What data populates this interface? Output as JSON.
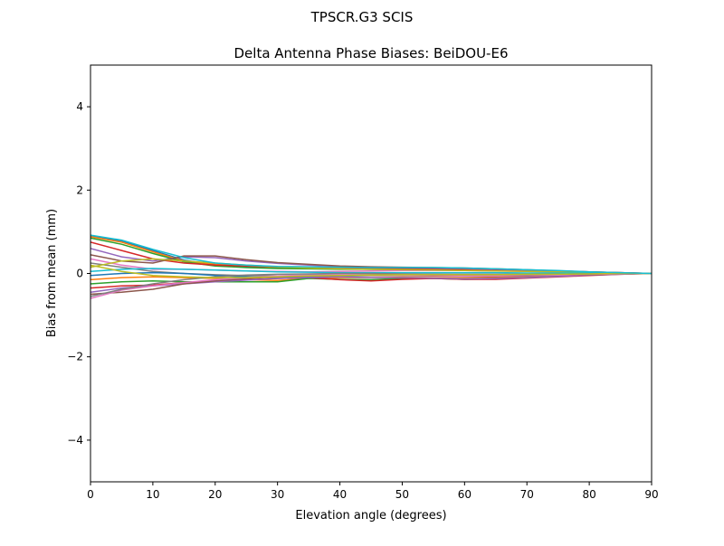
{
  "suptitle": "TPSCR.G3         SCIS",
  "chart_data": {
    "type": "line",
    "title": "Delta Antenna Phase Biases: BeiDOU-E6",
    "xlabel": "Elevation angle (degrees)",
    "ylabel": "Bias from mean (mm)",
    "xlim": [
      0,
      90
    ],
    "ylim": [
      -5,
      5
    ],
    "xticks": [
      0,
      10,
      20,
      30,
      40,
      50,
      60,
      70,
      80,
      90
    ],
    "yticks": [
      -4,
      -2,
      0,
      2,
      4
    ],
    "ytick_labels": [
      "−4",
      "−2",
      "0",
      "2",
      "4"
    ],
    "grid": false,
    "legend": "none",
    "colors": [
      "#1f77b4",
      "#ff7f0e",
      "#2ca02c",
      "#d62728",
      "#9467bd",
      "#8c564b",
      "#e377c2",
      "#7f7f7f",
      "#bcbd22",
      "#17becf"
    ],
    "x": [
      0,
      5,
      10,
      15,
      20,
      25,
      30,
      35,
      40,
      45,
      50,
      55,
      60,
      65,
      70,
      75,
      80,
      85,
      90
    ],
    "series": [
      {
        "values": [
          0.9,
          0.78,
          0.55,
          0.32,
          0.2,
          0.16,
          0.13,
          0.12,
          0.11,
          0.1,
          0.1,
          0.1,
          0.09,
          0.08,
          0.07,
          0.05,
          0.03,
          0.01,
          0
        ]
      },
      {
        "values": [
          0.88,
          0.75,
          0.52,
          0.3,
          0.22,
          0.18,
          0.15,
          0.14,
          0.13,
          0.12,
          0.12,
          0.12,
          0.11,
          0.1,
          0.08,
          0.06,
          0.04,
          0.02,
          0
        ]
      },
      {
        "values": [
          0.85,
          0.7,
          0.48,
          0.28,
          0.18,
          0.14,
          0.12,
          0.11,
          0.1,
          0.1,
          0.09,
          0.09,
          0.08,
          0.07,
          0.06,
          0.05,
          0.03,
          0.01,
          0
        ]
      },
      {
        "values": [
          0.75,
          0.55,
          0.35,
          0.25,
          0.2,
          0.18,
          0.16,
          0.15,
          0.14,
          0.13,
          0.12,
          0.11,
          0.1,
          0.09,
          0.07,
          0.05,
          0.03,
          0.01,
          0
        ]
      },
      {
        "values": [
          0.6,
          0.4,
          0.3,
          0.4,
          0.38,
          0.3,
          0.24,
          0.2,
          0.17,
          0.15,
          0.14,
          0.13,
          0.12,
          0.1,
          0.08,
          0.06,
          0.04,
          0.02,
          0
        ]
      },
      {
        "values": [
          0.45,
          0.3,
          0.25,
          0.42,
          0.42,
          0.33,
          0.26,
          0.22,
          0.18,
          0.16,
          0.15,
          0.14,
          0.13,
          0.11,
          0.09,
          0.06,
          0.04,
          0.02,
          0
        ]
      },
      {
        "values": [
          0.35,
          0.2,
          0.1,
          0.1,
          0.08,
          0.06,
          0.05,
          0.04,
          0.05,
          0.06,
          0.07,
          0.07,
          0.07,
          0.06,
          0.05,
          0.04,
          0.02,
          0.01,
          0
        ]
      },
      {
        "values": [
          0.25,
          0.15,
          0.05,
          0.0,
          -0.03,
          -0.05,
          -0.06,
          -0.05,
          -0.04,
          -0.03,
          -0.02,
          -0.02,
          -0.02,
          -0.02,
          -0.02,
          -0.01,
          -0.01,
          0.0,
          0
        ]
      },
      {
        "values": [
          0.15,
          0.3,
          0.35,
          0.3,
          0.25,
          0.2,
          0.16,
          0.13,
          0.11,
          0.1,
          0.09,
          0.08,
          0.07,
          0.06,
          0.05,
          0.04,
          0.02,
          0.01,
          0
        ]
      },
      {
        "values": [
          0.05,
          0.1,
          0.12,
          0.1,
          0.08,
          0.06,
          0.04,
          0.03,
          0.02,
          0.02,
          0.02,
          0.02,
          0.02,
          0.02,
          0.01,
          0.01,
          0.01,
          0.0,
          0
        ]
      },
      {
        "values": [
          -0.05,
          0.0,
          0.02,
          0.0,
          -0.05,
          -0.08,
          -0.1,
          -0.08,
          -0.06,
          -0.05,
          -0.05,
          -0.05,
          -0.05,
          -0.04,
          -0.03,
          -0.02,
          -0.01,
          0.0,
          0
        ]
      },
      {
        "values": [
          -0.15,
          -0.1,
          -0.08,
          -0.1,
          -0.12,
          -0.15,
          -0.17,
          -0.12,
          -0.1,
          -0.1,
          -0.09,
          -0.1,
          -0.11,
          -0.1,
          -0.08,
          -0.05,
          -0.03,
          -0.01,
          0
        ]
      },
      {
        "values": [
          -0.25,
          -0.2,
          -0.18,
          -0.2,
          -0.2,
          -0.2,
          -0.2,
          -0.12,
          -0.14,
          -0.15,
          -0.12,
          -0.12,
          -0.14,
          -0.13,
          -0.1,
          -0.07,
          -0.04,
          -0.01,
          0
        ]
      },
      {
        "values": [
          -0.35,
          -0.3,
          -0.28,
          -0.22,
          -0.18,
          -0.15,
          -0.12,
          -0.1,
          -0.15,
          -0.18,
          -0.14,
          -0.12,
          -0.14,
          -0.14,
          -0.11,
          -0.08,
          -0.05,
          -0.02,
          0
        ]
      },
      {
        "values": [
          -0.45,
          -0.35,
          -0.3,
          -0.25,
          -0.2,
          -0.16,
          -0.12,
          -0.1,
          -0.08,
          -0.1,
          -0.1,
          -0.11,
          -0.13,
          -0.12,
          -0.1,
          -0.07,
          -0.04,
          -0.02,
          0
        ]
      },
      {
        "values": [
          -0.5,
          -0.45,
          -0.38,
          -0.25,
          -0.18,
          -0.12,
          -0.08,
          -0.06,
          -0.05,
          -0.05,
          -0.05,
          -0.06,
          -0.07,
          -0.07,
          -0.06,
          -0.04,
          -0.03,
          -0.01,
          0
        ]
      },
      {
        "values": [
          -0.6,
          -0.4,
          -0.3,
          -0.22,
          -0.15,
          -0.1,
          -0.06,
          -0.04,
          -0.03,
          -0.03,
          -0.04,
          -0.05,
          -0.06,
          -0.06,
          -0.05,
          -0.04,
          -0.02,
          -0.01,
          0
        ]
      },
      {
        "values": [
          -0.55,
          -0.38,
          -0.25,
          -0.15,
          -0.08,
          -0.04,
          -0.02,
          -0.01,
          0.0,
          0.0,
          -0.01,
          -0.02,
          -0.03,
          -0.03,
          -0.03,
          -0.02,
          -0.01,
          0.0,
          0
        ]
      },
      {
        "values": [
          0.2,
          0.05,
          -0.05,
          -0.08,
          -0.1,
          -0.1,
          -0.08,
          -0.06,
          -0.05,
          -0.04,
          -0.03,
          -0.03,
          -0.03,
          -0.03,
          -0.02,
          -0.02,
          -0.01,
          0.0,
          0
        ]
      },
      {
        "values": [
          0.92,
          0.8,
          0.58,
          0.38,
          0.25,
          0.2,
          0.17,
          0.16,
          0.15,
          0.14,
          0.14,
          0.14,
          0.13,
          0.11,
          0.09,
          0.07,
          0.04,
          0.02,
          0
        ]
      }
    ]
  }
}
